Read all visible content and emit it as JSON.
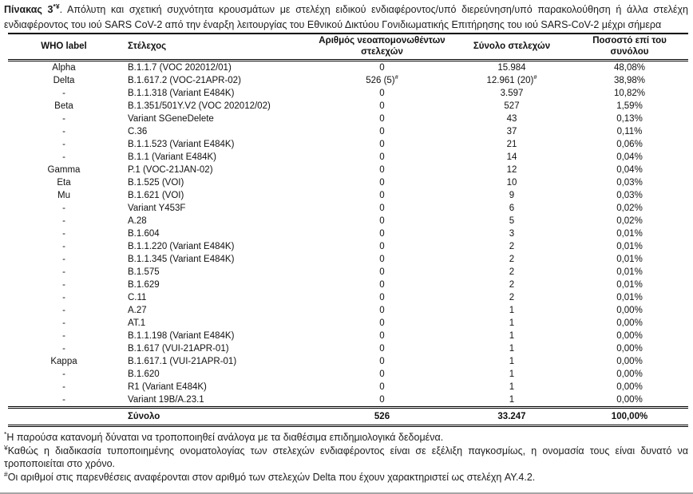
{
  "title": {
    "label": "Πίνακας 3",
    "superscript": "*¥",
    "text": ". Απόλυτη και σχετική συχνότητα κρουσμάτων με στελέχη ειδικού ενδιαφέροντος/υπό διερεύνηση/υπό παρακολούθηση ή άλλα στελέχη ενδιαφέροντος του ιού SARS CoV-2 από την έναρξη λειτουργίας του Εθνικού Δικτύου Γονιδιωματικής Επιτήρησης του ιού SARS-CoV-2 μέχρι σήμερα"
  },
  "table": {
    "columns": [
      "WHO label",
      "Στέλεχος",
      "Αριθμός νεοαπομονωθέντων στελεχών",
      "Σύνολο στελεχών",
      "Ποσοστό επί του συνόλου"
    ],
    "rows": [
      {
        "who": "Alpha",
        "strain": "B.1.1.7 (VOC 202012/01)",
        "new_isolates": "0",
        "total": "15.984",
        "percent": "48,08%"
      },
      {
        "who": "Delta",
        "strain": "B.1.617.2 (VOC-21APR-02)",
        "new_isolates": "526 (5)",
        "new_isolates_sup": "#",
        "total": "12.961 (20)",
        "total_sup": "#",
        "percent": "38,98%"
      },
      {
        "who": "-",
        "strain": "B.1.1.318 (Variant E484K)",
        "new_isolates": "0",
        "total": "3.597",
        "percent": "10,82%"
      },
      {
        "who": "Beta",
        "strain": "B.1.351/501Y.V2 (VOC 202012/02)",
        "new_isolates": "0",
        "total": "527",
        "percent": "1,59%"
      },
      {
        "who": "-",
        "strain": "Variant SGeneDelete",
        "new_isolates": "0",
        "total": "43",
        "percent": "0,13%"
      },
      {
        "who": "-",
        "strain": "C.36",
        "new_isolates": "0",
        "total": "37",
        "percent": "0,11%"
      },
      {
        "who": "-",
        "strain": "B.1.1.523 (Variant E484K)",
        "new_isolates": "0",
        "total": "21",
        "percent": "0,06%"
      },
      {
        "who": "-",
        "strain": "B.1.1 (Variant E484K)",
        "new_isolates": "0",
        "total": "14",
        "percent": "0,04%"
      },
      {
        "who": "Gamma",
        "strain": "P.1 (VOC-21JAN-02)",
        "new_isolates": "0",
        "total": "12",
        "percent": "0,04%"
      },
      {
        "who": "Eta",
        "strain": "B.1.525 (VOI)",
        "new_isolates": "0",
        "total": "10",
        "percent": "0,03%"
      },
      {
        "who": "Mu",
        "strain": "B.1.621 (VOI)",
        "new_isolates": "0",
        "total": "9",
        "percent": "0,03%"
      },
      {
        "who": "-",
        "strain": "Variant Y453F",
        "new_isolates": "0",
        "total": "6",
        "percent": "0,02%"
      },
      {
        "who": "-",
        "strain": "A.28",
        "new_isolates": "0",
        "total": "5",
        "percent": "0,02%"
      },
      {
        "who": "-",
        "strain": "B.1.604",
        "new_isolates": "0",
        "total": "3",
        "percent": "0,01%"
      },
      {
        "who": "-",
        "strain": "B.1.1.220 (Variant E484K)",
        "new_isolates": "0",
        "total": "2",
        "percent": "0,01%"
      },
      {
        "who": "-",
        "strain": "B.1.1.345 (Variant E484K)",
        "new_isolates": "0",
        "total": "2",
        "percent": "0,01%"
      },
      {
        "who": "-",
        "strain": "B.1.575",
        "new_isolates": "0",
        "total": "2",
        "percent": "0,01%"
      },
      {
        "who": "-",
        "strain": "B.1.629",
        "new_isolates": "0",
        "total": "2",
        "percent": "0,01%"
      },
      {
        "who": "-",
        "strain": "C.11",
        "new_isolates": "0",
        "total": "2",
        "percent": "0,01%"
      },
      {
        "who": "-",
        "strain": "A.27",
        "new_isolates": "0",
        "total": "1",
        "percent": "0,00%"
      },
      {
        "who": "-",
        "strain": "AT.1",
        "new_isolates": "0",
        "total": "1",
        "percent": "0,00%"
      },
      {
        "who": "-",
        "strain": "B.1.1.198 (Variant E484K)",
        "new_isolates": "0",
        "total": "1",
        "percent": "0,00%"
      },
      {
        "who": "-",
        "strain": "B.1.617 (VUI-21APR-01)",
        "new_isolates": "0",
        "total": "1",
        "percent": "0,00%"
      },
      {
        "who": "Kappa",
        "strain": "B.1.617.1 (VUI-21APR-01)",
        "new_isolates": "0",
        "total": "1",
        "percent": "0,00%"
      },
      {
        "who": "-",
        "strain": "B.1.620",
        "new_isolates": "0",
        "total": "1",
        "percent": "0,00%"
      },
      {
        "who": "-",
        "strain": "R1 (Variant E484K)",
        "new_isolates": "0",
        "total": "1",
        "percent": "0,00%"
      },
      {
        "who": "-",
        "strain": "Variant 19B/A.23.1",
        "new_isolates": "0",
        "total": "1",
        "percent": "0,00%"
      }
    ],
    "total_row": {
      "label": "Σύνολο",
      "new_isolates": "526",
      "total": "33.247",
      "percent": "100,00%"
    }
  },
  "footnotes": [
    {
      "symbol": "*",
      "text": "Η παρούσα κατανομή δύναται να τροποποιηθεί ανάλογα με τα διαθέσιμα επιδημιολογικά δεδομένα."
    },
    {
      "symbol": "¥",
      "text": "Καθώς η διαδικασία τυποποιημένης ονοματολογίας των στελεχών ενδιαφέροντος είναι σε εξέλιξη παγκοσμίως, η ονομασία τους είναι δυνατό να τροποποιείται στο χρόνο."
    },
    {
      "symbol": "#",
      "text": "Οι αριθμοί στις παρενθέσεις αναφέρονται στον αριθμό των στελεχών Delta που έχουν χαρακτηριστεί ως στελέχη AY.4.2."
    }
  ],
  "colors": {
    "text": "#1c1c1c",
    "table_border": "#000000",
    "bottom_rule": "#a6a6a6"
  }
}
